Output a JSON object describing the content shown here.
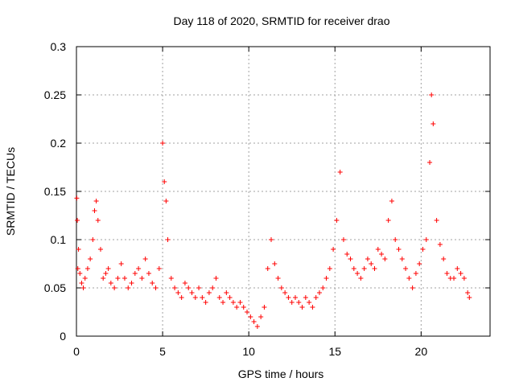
{
  "chart_data": {
    "type": "scatter",
    "title": "Day 118 of 2020, SRMTID for receiver drao",
    "xlabel": "GPS time / hours",
    "ylabel": "SRMTID / TECUs",
    "xlim": [
      0,
      24
    ],
    "ylim": [
      0,
      0.3
    ],
    "x_ticks": [
      0,
      5,
      10,
      15,
      20
    ],
    "x_tick_labels": [
      "0",
      "5",
      "10",
      "15",
      "20"
    ],
    "y_ticks": [
      0,
      0.05,
      0.1,
      0.15,
      0.2,
      0.25,
      0.3
    ],
    "y_tick_labels": [
      "0",
      "0.05",
      "0.1",
      "0.15",
      "0.2",
      "0.25",
      "0.3"
    ],
    "grid": true,
    "marker": "plus",
    "color": "#ff0000",
    "series": [
      {
        "name": "SRMTID",
        "x": [
          0.02,
          0.05,
          0.08,
          0.12,
          0.2,
          0.3,
          0.4,
          0.5,
          0.65,
          0.8,
          0.95,
          1.05,
          1.15,
          1.25,
          1.4,
          1.55,
          1.7,
          1.85,
          2.0,
          2.2,
          2.4,
          2.6,
          2.8,
          3.0,
          3.2,
          3.4,
          3.6,
          3.8,
          4.0,
          4.2,
          4.4,
          4.6,
          4.8,
          5.0,
          5.1,
          5.2,
          5.3,
          5.5,
          5.7,
          5.9,
          6.1,
          6.3,
          6.5,
          6.7,
          6.9,
          7.1,
          7.3,
          7.5,
          7.7,
          7.9,
          8.1,
          8.3,
          8.5,
          8.7,
          8.9,
          9.1,
          9.3,
          9.5,
          9.7,
          9.9,
          10.1,
          10.3,
          10.5,
          10.7,
          10.9,
          11.1,
          11.3,
          11.5,
          11.7,
          11.9,
          12.1,
          12.3,
          12.5,
          12.7,
          12.9,
          13.1,
          13.3,
          13.5,
          13.7,
          13.9,
          14.1,
          14.3,
          14.5,
          14.7,
          14.9,
          15.1,
          15.3,
          15.5,
          15.7,
          15.9,
          16.1,
          16.3,
          16.5,
          16.7,
          16.9,
          17.1,
          17.3,
          17.5,
          17.7,
          17.9,
          18.1,
          18.3,
          18.5,
          18.7,
          18.9,
          19.1,
          19.3,
          19.5,
          19.7,
          19.9,
          20.1,
          20.3,
          20.5,
          20.6,
          20.7,
          20.9,
          21.1,
          21.3,
          21.5,
          21.7,
          21.9,
          22.1,
          22.3,
          22.5,
          22.7,
          22.8
        ],
        "y": [
          0.143,
          0.12,
          0.07,
          0.09,
          0.065,
          0.055,
          0.05,
          0.06,
          0.07,
          0.08,
          0.1,
          0.13,
          0.14,
          0.12,
          0.09,
          0.06,
          0.065,
          0.07,
          0.055,
          0.05,
          0.06,
          0.075,
          0.06,
          0.05,
          0.055,
          0.065,
          0.07,
          0.06,
          0.08,
          0.065,
          0.055,
          0.05,
          0.07,
          0.2,
          0.16,
          0.14,
          0.1,
          0.06,
          0.05,
          0.045,
          0.04,
          0.055,
          0.05,
          0.045,
          0.04,
          0.05,
          0.04,
          0.035,
          0.045,
          0.05,
          0.06,
          0.04,
          0.035,
          0.045,
          0.04,
          0.035,
          0.03,
          0.035,
          0.03,
          0.025,
          0.02,
          0.015,
          0.01,
          0.02,
          0.03,
          0.07,
          0.1,
          0.075,
          0.06,
          0.05,
          0.045,
          0.04,
          0.035,
          0.04,
          0.035,
          0.03,
          0.04,
          0.035,
          0.03,
          0.04,
          0.045,
          0.05,
          0.06,
          0.07,
          0.09,
          0.12,
          0.17,
          0.1,
          0.085,
          0.08,
          0.07,
          0.065,
          0.06,
          0.07,
          0.08,
          0.075,
          0.07,
          0.09,
          0.085,
          0.08,
          0.12,
          0.14,
          0.1,
          0.09,
          0.08,
          0.07,
          0.06,
          0.05,
          0.065,
          0.075,
          0.09,
          0.1,
          0.18,
          0.25,
          0.22,
          0.12,
          0.095,
          0.08,
          0.065,
          0.06,
          0.06,
          0.07,
          0.065,
          0.06,
          0.045,
          0.04
        ]
      }
    ]
  }
}
